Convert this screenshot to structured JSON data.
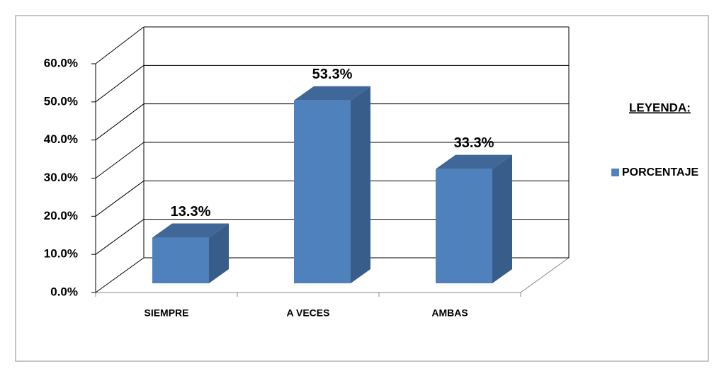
{
  "chart_data": {
    "type": "bar3d",
    "categories": [
      "SIEMPRE",
      "A VECES",
      "AMBAS"
    ],
    "series": [
      {
        "name": "PORCENTAJE",
        "color": "#4f81bd",
        "values": [
          13.3,
          53.3,
          33.3
        ],
        "value_labels": [
          "13.3%",
          "53.3%",
          "33.3%"
        ]
      }
    ],
    "ylim": [
      0,
      60
    ],
    "yticks": [
      {
        "value": 0,
        "label": "0.0%"
      },
      {
        "value": 10,
        "label": "10.0%"
      },
      {
        "value": 20,
        "label": "20.0%"
      },
      {
        "value": 30,
        "label": "30.0%"
      },
      {
        "value": 40,
        "label": "40.0%"
      },
      {
        "value": 50,
        "label": "50.0%"
      },
      {
        "value": 60,
        "label": "60.0%"
      }
    ],
    "grid": true,
    "legend_title": "LEYENDA:",
    "legend": "right"
  }
}
